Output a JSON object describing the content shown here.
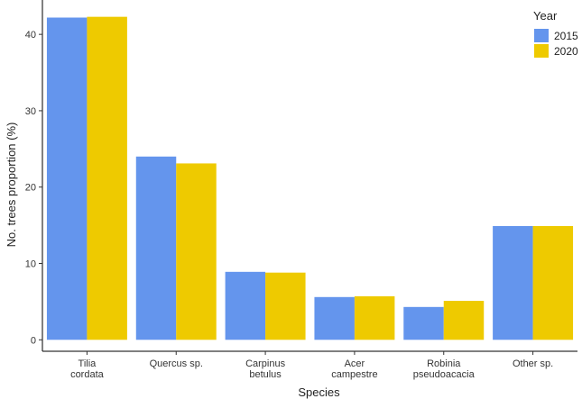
{
  "chart_data": {
    "type": "bar",
    "categories": [
      [
        "Tilia",
        "cordata"
      ],
      [
        "Quercus sp."
      ],
      [
        "Carpinus",
        "betulus"
      ],
      [
        "Acer",
        "campestre"
      ],
      [
        "Robinia",
        "pseudoacacia"
      ],
      [
        "Other sp."
      ]
    ],
    "series": [
      {
        "name": "2015",
        "color": "#6495ED",
        "values": [
          42.2,
          24.0,
          8.9,
          5.6,
          4.3,
          14.9
        ]
      },
      {
        "name": "2020",
        "color": "#EECA00",
        "values": [
          42.3,
          23.1,
          8.8,
          5.7,
          5.1,
          14.9
        ]
      }
    ],
    "xlabel": "Species",
    "ylabel": "No. trees proportion (%)",
    "yticks": [
      0,
      10,
      20,
      30,
      40
    ],
    "ylim": [
      -1.5,
      44.5
    ],
    "legend": {
      "title": "Year",
      "position": "top-right"
    },
    "grid": false
  }
}
